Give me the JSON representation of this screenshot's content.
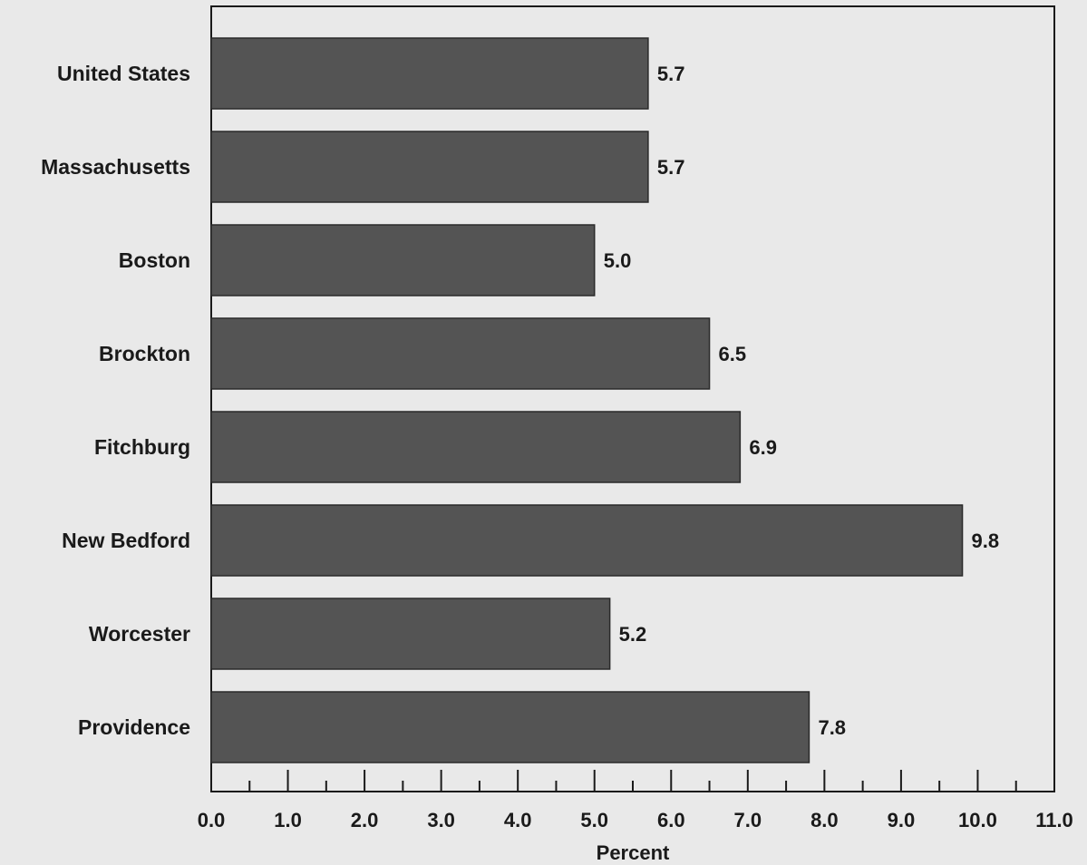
{
  "chart_data": {
    "type": "bar",
    "orientation": "horizontal",
    "categories": [
      "United States",
      "Massachusetts",
      "Boston",
      "Brockton",
      "Fitchburg",
      "New Bedford",
      "Worcester",
      "Providence"
    ],
    "values": [
      5.7,
      5.7,
      5.0,
      6.5,
      6.9,
      9.8,
      5.2,
      7.8
    ],
    "value_labels": [
      "5.7",
      "5.7",
      "5.0",
      "6.5",
      "6.9",
      "9.8",
      "5.2",
      "7.8"
    ],
    "title": "",
    "xlabel": "Percent",
    "ylabel": "",
    "xlim": [
      0,
      11
    ],
    "x_ticks": [
      "0.0",
      "1.0",
      "2.0",
      "3.0",
      "4.0",
      "5.0",
      "6.0",
      "7.0",
      "8.0",
      "9.0",
      "10.0",
      "11.0"
    ],
    "grid": false,
    "legend": "none",
    "colors": {
      "bar_fill": "#545454",
      "bar_stroke": "#2a2a2a",
      "background": "#e9e9e9",
      "text": "#1a1a1a"
    }
  }
}
